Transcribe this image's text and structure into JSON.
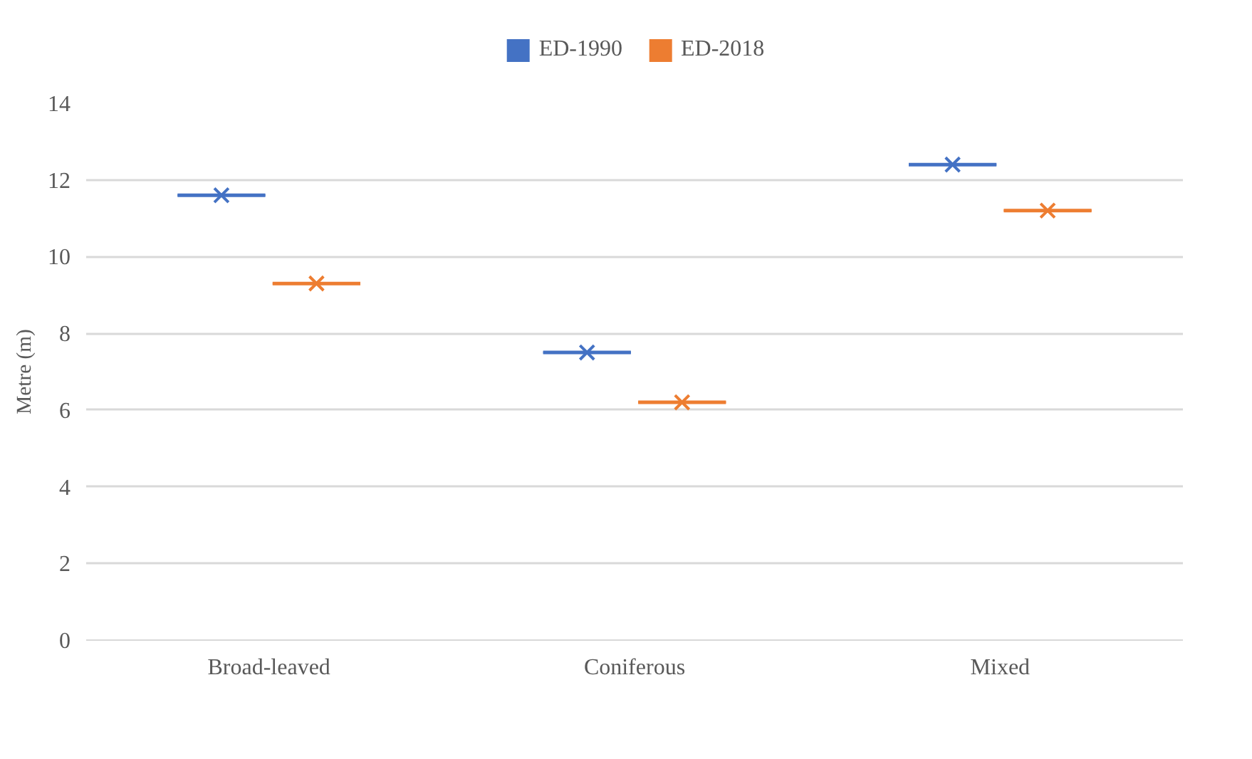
{
  "chart_data": {
    "type": "box",
    "ylabel": "Metre (m)",
    "categories": [
      "Broad-leaved",
      "Coniferous",
      "Mixed"
    ],
    "ylim": [
      0,
      14
    ],
    "yticks": [
      0,
      2,
      4,
      6,
      8,
      10,
      12,
      14
    ],
    "grid": "y",
    "legend": "top",
    "marker": "cross",
    "series": [
      {
        "name": "ED-1990",
        "color": "#4472c4",
        "boxes": [
          {
            "low": 11.6,
            "q1": 11.6,
            "median": 11.6,
            "q3": 11.6,
            "high": 11.6,
            "mean": 11.6
          },
          {
            "low": 7.5,
            "q1": 7.5,
            "median": 7.5,
            "q3": 7.5,
            "high": 7.5,
            "mean": 7.5
          },
          {
            "low": 12.4,
            "q1": 12.4,
            "median": 12.4,
            "q3": 12.4,
            "high": 12.4,
            "mean": 12.4
          }
        ]
      },
      {
        "name": "ED-2018",
        "color": "#ed7d31",
        "boxes": [
          {
            "low": 9.3,
            "q1": 9.3,
            "median": 9.3,
            "q3": 9.3,
            "high": 9.3,
            "mean": 9.3
          },
          {
            "low": 6.2,
            "q1": 6.2,
            "median": 6.2,
            "q3": 6.2,
            "high": 6.2,
            "mean": 6.2
          },
          {
            "low": 11.2,
            "q1": 11.2,
            "median": 11.2,
            "q3": 11.2,
            "high": 11.2,
            "mean": 11.2
          }
        ]
      }
    ]
  }
}
